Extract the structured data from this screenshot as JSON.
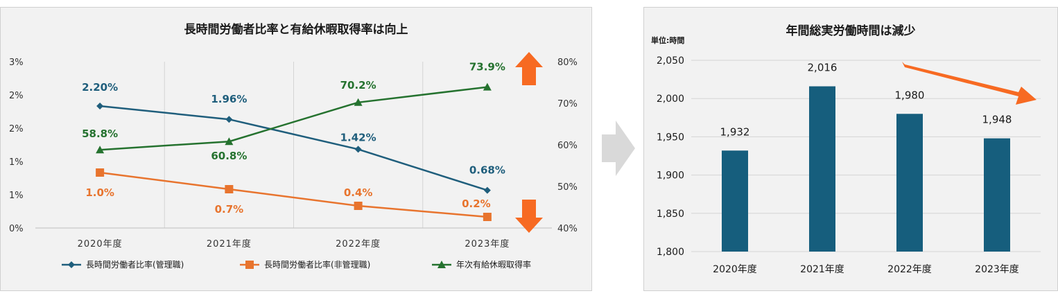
{
  "colors": {
    "managerial": "#1f5e7c",
    "non_managerial": "#e8742e",
    "leave": "#25722f",
    "bar": "#165e7d",
    "arrow": "#f76a22",
    "connector": "#d9d9d9"
  },
  "chart_data": [
    {
      "type": "line",
      "title": "長時間労働者比率と有給休暇取得率は向上",
      "categories": [
        "2020年度",
        "2021年度",
        "2022年度",
        "2023年度"
      ],
      "y_left": {
        "ylim": [
          0,
          0.03
        ],
        "ticks": [
          "0%",
          "1%",
          "1%",
          "2%",
          "2%",
          "3%"
        ]
      },
      "y_right": {
        "ylim": [
          40,
          80
        ],
        "ticks": [
          "40%",
          "50%",
          "60%",
          "70%",
          "80%"
        ]
      },
      "grid": "vertical-only",
      "legend_position": "bottom",
      "series": [
        {
          "name": "長時間労働者比率(管理職)",
          "axis": "left",
          "marker": "diamond",
          "values": [
            0.022,
            0.0196,
            0.0142,
            0.0068
          ],
          "labels": [
            "2.20%",
            "1.96%",
            "1.42%",
            "0.68%"
          ]
        },
        {
          "name": "長時間労働者比率(非管理職)",
          "axis": "left",
          "marker": "square",
          "values": [
            0.01,
            0.007,
            0.004,
            0.002
          ],
          "labels": [
            "1.0%",
            "0.7%",
            "0.4%",
            "0.2%"
          ]
        },
        {
          "name": "年次有給休暇取得率",
          "axis": "right",
          "marker": "triangle",
          "values": [
            58.8,
            60.8,
            70.2,
            73.9
          ],
          "labels": [
            "58.8%",
            "60.8%",
            "70.2%",
            "73.9%"
          ]
        }
      ]
    },
    {
      "type": "bar",
      "title": "年間総実労働時間は減少",
      "unit_label": "単位:時間",
      "categories": [
        "2020年度",
        "2021年度",
        "2022年度",
        "2023年度"
      ],
      "values": [
        1932,
        2016,
        1980,
        1948
      ],
      "labels": [
        "1,932",
        "2,016",
        "1,980",
        "1,948"
      ],
      "ylim": [
        1800,
        2050
      ],
      "ticks": [
        "1,800",
        "1,850",
        "1,900",
        "1,950",
        "2,000",
        "2,050"
      ],
      "grid": "horizontal"
    }
  ]
}
